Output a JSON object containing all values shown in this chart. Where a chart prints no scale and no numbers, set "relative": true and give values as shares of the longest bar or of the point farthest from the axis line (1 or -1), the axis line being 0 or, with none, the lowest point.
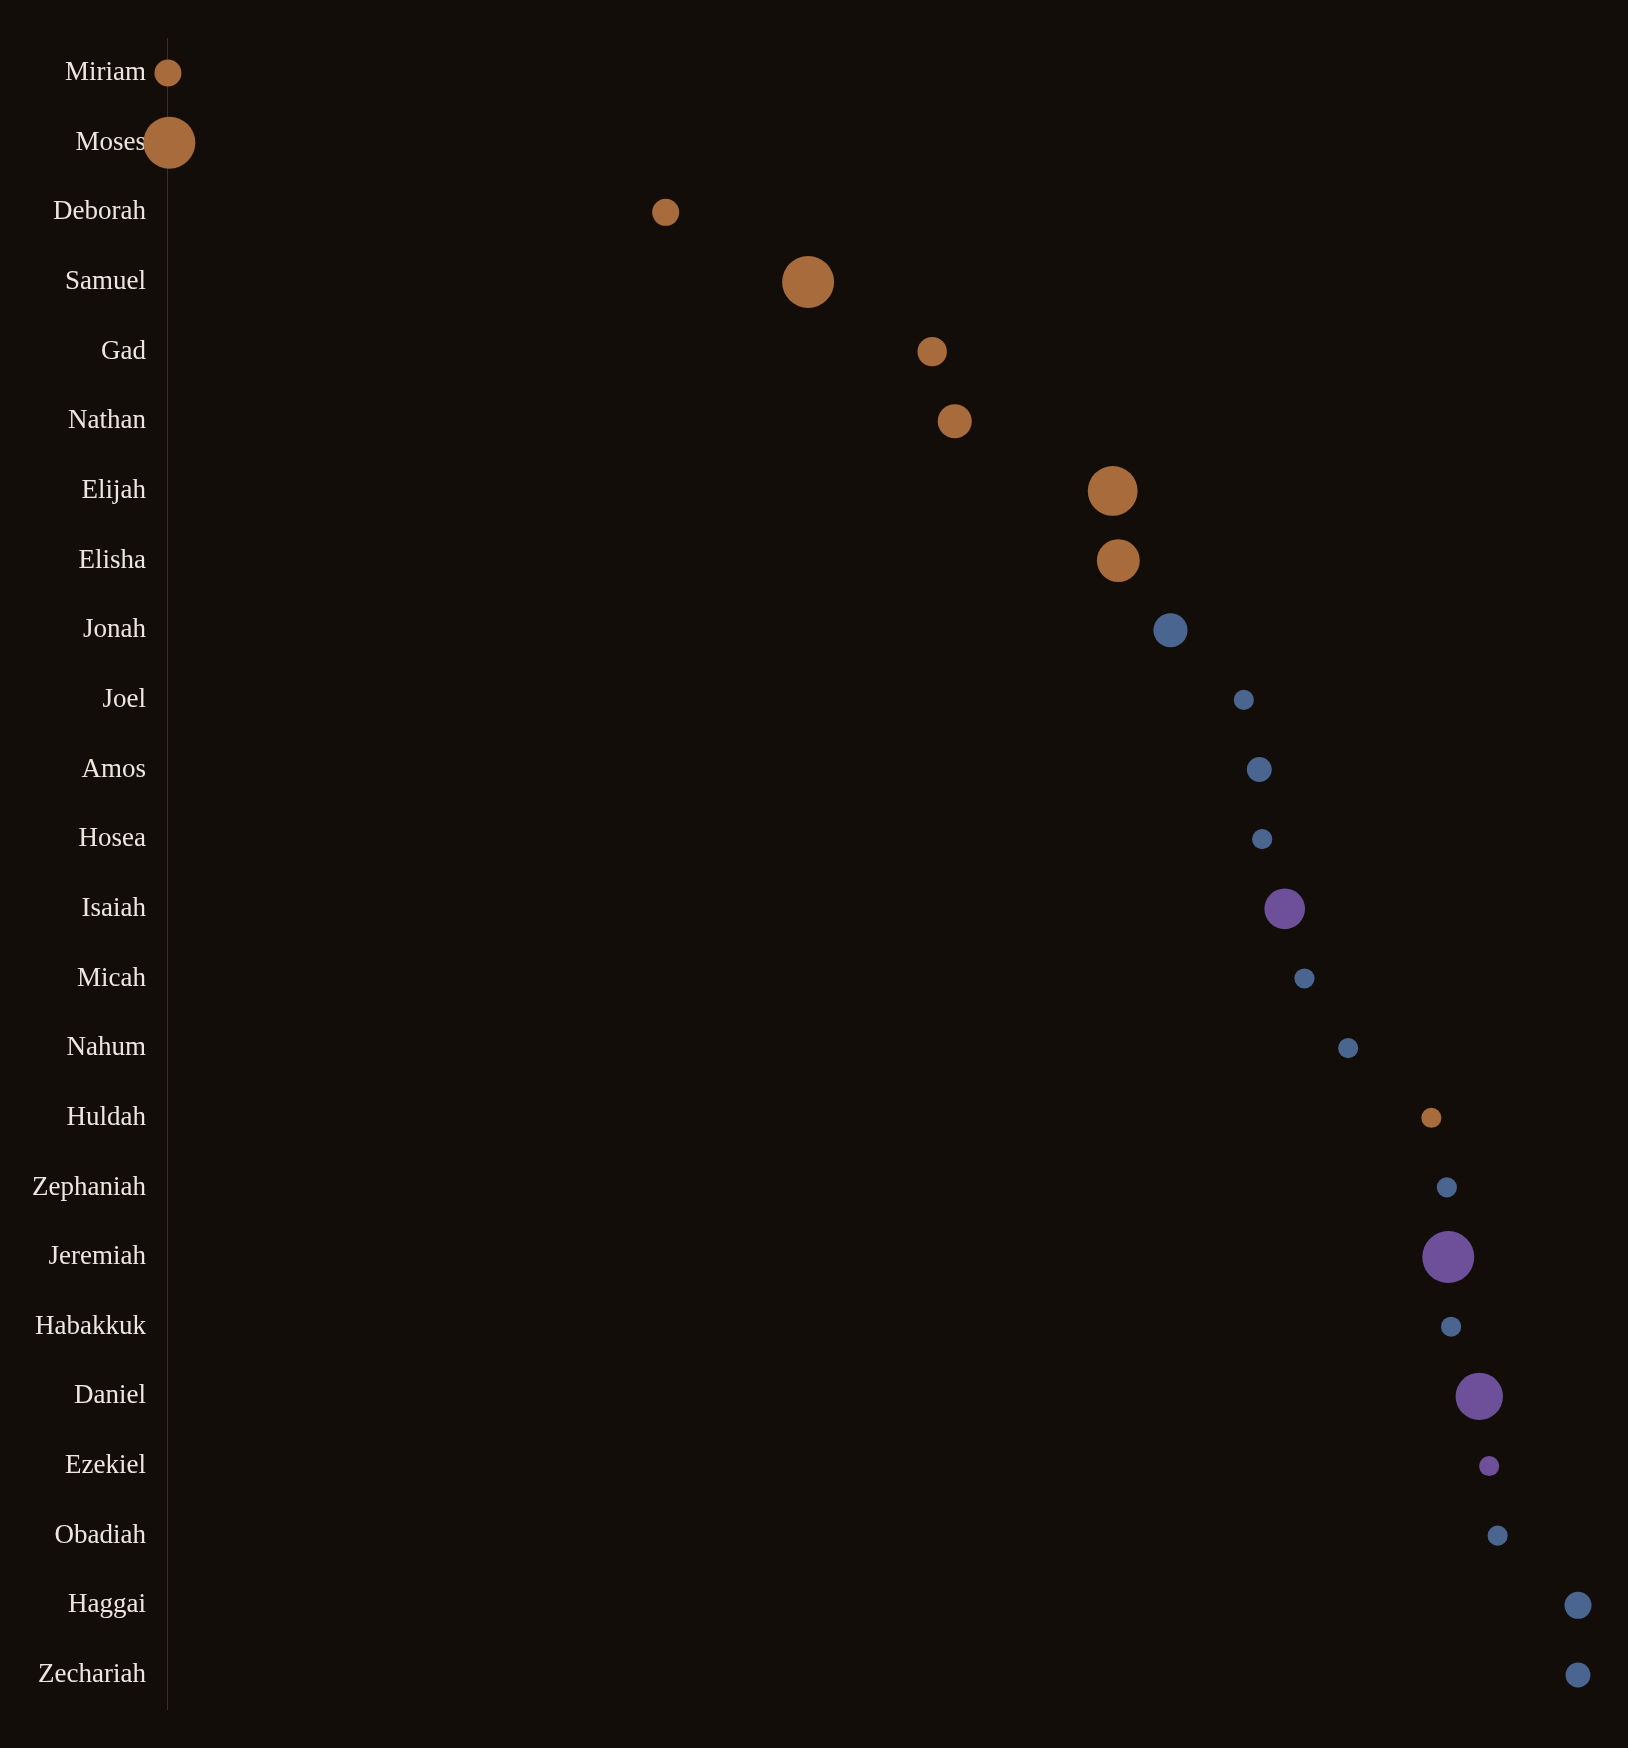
{
  "chart_data": {
    "type": "bubble",
    "orientation": "horizontal",
    "relative": true,
    "categories": [
      "Miriam",
      "Moses",
      "Deborah",
      "Samuel",
      "Gad",
      "Nathan",
      "Elijah",
      "Elisha",
      "Jonah",
      "Joel",
      "Amos",
      "Hosea",
      "Isaiah",
      "Micah",
      "Nahum",
      "Huldah",
      "Zephaniah",
      "Jeremiah",
      "Habakkuk",
      "Daniel",
      "Ezekiel",
      "Obadiah",
      "Haggai",
      "Zechariah"
    ],
    "values": [
      0,
      0.001,
      0.353,
      0.454,
      0.542,
      0.558,
      0.67,
      0.674,
      0.711,
      0.763,
      0.774,
      0.776,
      0.792,
      0.806,
      0.837,
      0.896,
      0.907,
      0.908,
      0.91,
      0.93,
      0.937,
      0.943,
      1,
      1
    ],
    "sizes": [
      0.27,
      1,
      0.27,
      1,
      0.32,
      0.43,
      0.92,
      0.68,
      0.43,
      0.15,
      0.23,
      0.15,
      0.61,
      0.15,
      0.15,
      0.15,
      0.15,
      1,
      0.15,
      0.83,
      0.15,
      0.15,
      0.27,
      0.23
    ],
    "colors": [
      "#a86b3c",
      "#a86b3c",
      "#a86b3c",
      "#a86b3c",
      "#a86b3c",
      "#a86b3c",
      "#a86b3c",
      "#a86b3c",
      "#4a6590",
      "#4a6590",
      "#4a6590",
      "#4a6590",
      "#6e4f9a",
      "#4a6590",
      "#4a6590",
      "#a86b3c",
      "#4a6590",
      "#6e4f9a",
      "#4a6590",
      "#6e4f9a",
      "#6e4f9a",
      "#4a6590",
      "#4a6590",
      "#4a6590"
    ]
  }
}
